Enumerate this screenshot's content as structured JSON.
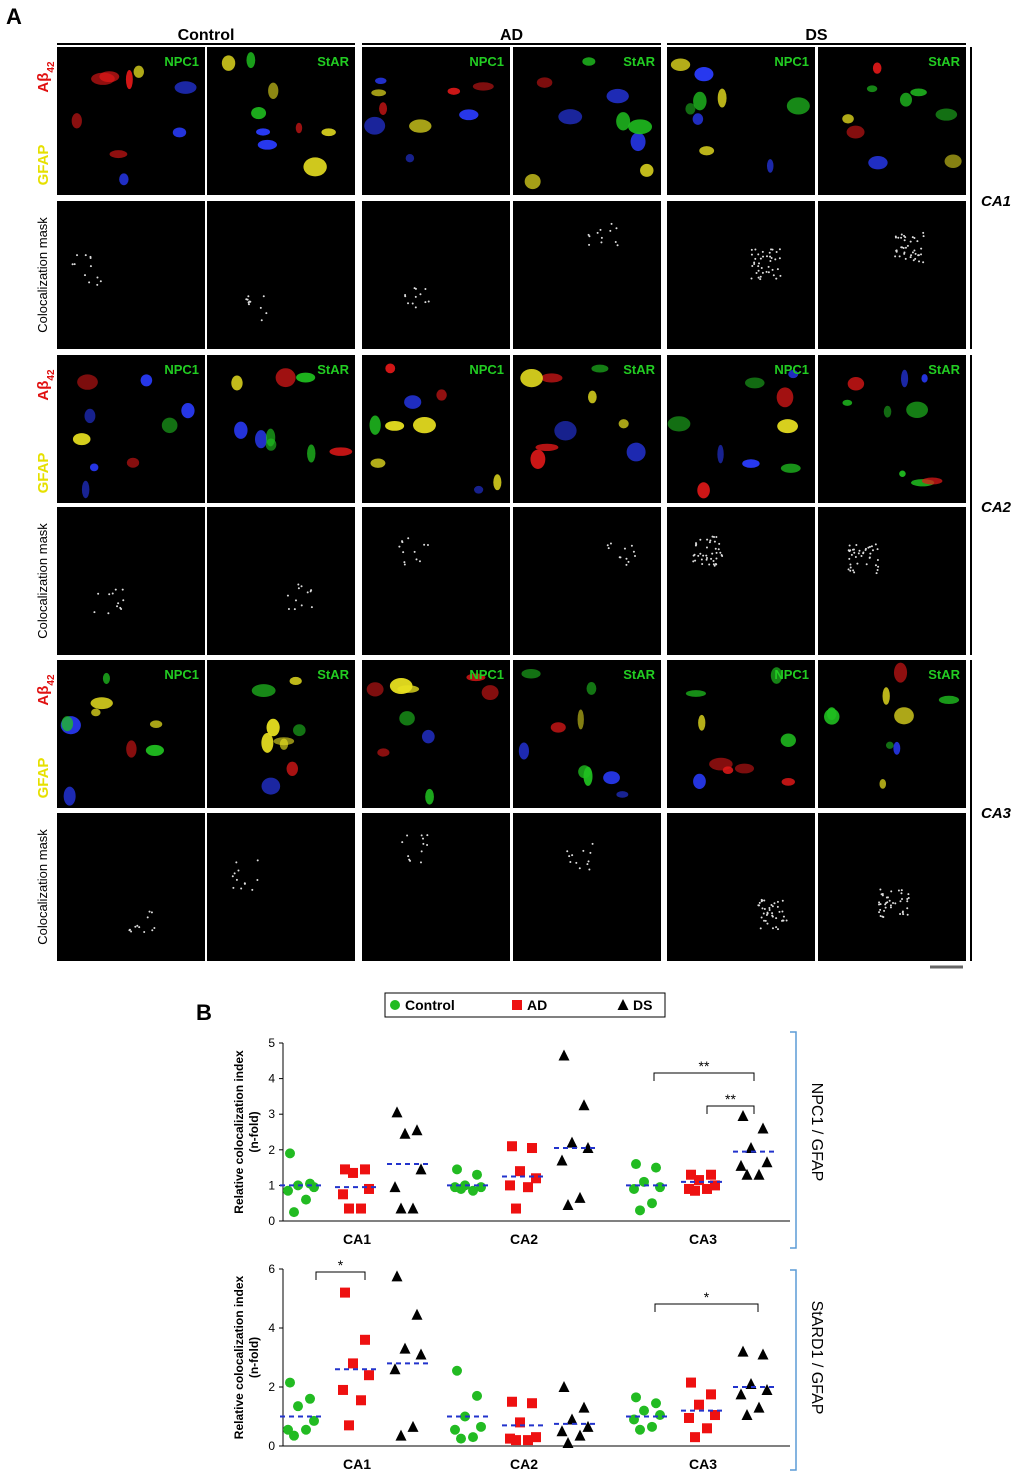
{
  "panel_a": {
    "label": "A",
    "columns": [
      "Control",
      "AD",
      "DS"
    ],
    "markers": [
      "NPC1",
      "StAR"
    ],
    "stain_labels": {
      "abeta": "Aβ",
      "abeta_sub": "42",
      "gfap": "GFAP"
    },
    "mask_label": "Colocalization mask",
    "regions": [
      "CA1",
      "CA2",
      "CA3"
    ]
  },
  "panel_b": {
    "label": "B"
  },
  "chart_data": [
    {
      "type": "scatter",
      "categories": [
        "CA1",
        "CA2",
        "CA3"
      ],
      "ylabel": [
        "Relative colocalization index",
        "(n-fold)"
      ],
      "side_label": "NPC1 / GFAP",
      "ylim": [
        0,
        5
      ],
      "yticks": [
        0,
        1,
        2,
        3,
        4,
        5
      ],
      "mean_color": "#2233cc",
      "series": [
        {
          "name": "Control",
          "color": "#22bb22",
          "values": [
            [
              1.9,
              1.05,
              1.0,
              0.95,
              0.85,
              0.6,
              0.25
            ],
            [
              1.45,
              1.3,
              1.0,
              0.95,
              0.95,
              0.85,
              0.9
            ],
            [
              1.6,
              1.5,
              1.1,
              0.95,
              0.9,
              0.5,
              0.3
            ]
          ],
          "means": [
            1.0,
            1.0,
            1.0
          ]
        },
        {
          "name": "AD",
          "color": "#ee1111",
          "values": [
            [
              1.45,
              1.45,
              1.35,
              0.9,
              0.75,
              0.35,
              0.35
            ],
            [
              2.1,
              2.05,
              1.4,
              1.2,
              1.0,
              0.95,
              0.35
            ],
            [
              1.3,
              1.3,
              1.15,
              1.0,
              0.9,
              0.9,
              0.85
            ]
          ],
          "means": [
            0.95,
            1.25,
            1.1
          ]
        },
        {
          "name": "DS",
          "color": "#000000",
          "values": [
            [
              3.05,
              2.55,
              2.45,
              1.45,
              0.95,
              0.35,
              0.35
            ],
            [
              4.65,
              3.25,
              2.2,
              2.05,
              1.7,
              0.65,
              0.45
            ],
            [
              2.95,
              2.6,
              2.05,
              1.65,
              1.55,
              1.3,
              1.3
            ]
          ],
          "means": [
            1.6,
            2.05,
            1.95
          ]
        }
      ],
      "annotations": [
        "**",
        "**"
      ]
    },
    {
      "type": "scatter",
      "categories": [
        "CA1",
        "CA2",
        "CA3"
      ],
      "ylabel": [
        "Relative colocalization index",
        "(n-fold)"
      ],
      "side_label": "StARD1 / GFAP",
      "ylim": [
        0,
        6
      ],
      "yticks": [
        0,
        2,
        4,
        6
      ],
      "mean_color": "#2233cc",
      "series": [
        {
          "name": "Control",
          "color": "#22bb22",
          "values": [
            [
              2.15,
              1.6,
              1.35,
              0.85,
              0.55,
              0.55,
              0.35
            ],
            [
              2.55,
              1.7,
              1.0,
              0.65,
              0.55,
              0.3,
              0.25
            ],
            [
              1.65,
              1.45,
              1.2,
              1.05,
              0.9,
              0.65,
              0.55
            ]
          ],
          "means": [
            1.0,
            1.0,
            1.0
          ]
        },
        {
          "name": "AD",
          "color": "#ee1111",
          "values": [
            [
              5.2,
              3.6,
              2.8,
              2.4,
              1.9,
              1.55,
              0.7
            ],
            [
              1.5,
              1.45,
              0.8,
              0.3,
              0.25,
              0.2,
              0.2
            ],
            [
              2.15,
              1.75,
              1.4,
              1.05,
              0.95,
              0.6,
              0.3
            ]
          ],
          "means": [
            2.6,
            0.7,
            1.2
          ]
        },
        {
          "name": "DS",
          "color": "#000000",
          "values": [
            [
              5.75,
              4.45,
              3.3,
              3.1,
              2.6,
              0.65,
              0.35
            ],
            [
              2.0,
              1.3,
              0.9,
              0.65,
              0.5,
              0.35,
              0.1
            ],
            [
              3.2,
              3.1,
              2.1,
              1.9,
              1.75,
              1.3,
              1.05
            ]
          ],
          "means": [
            2.8,
            0.75,
            2.0
          ]
        }
      ],
      "annotations": [
        "*",
        "*"
      ]
    }
  ]
}
